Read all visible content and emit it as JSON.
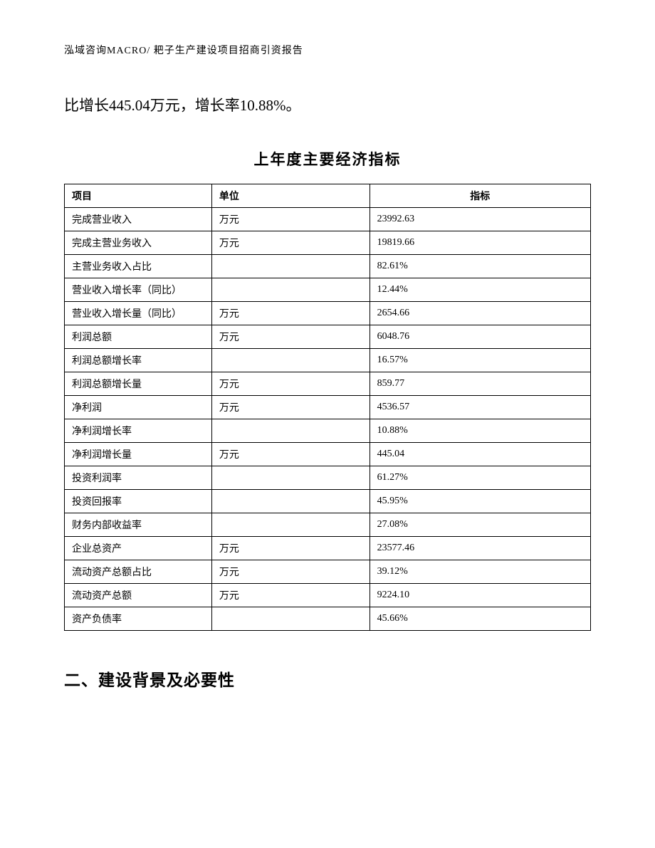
{
  "header": {
    "text": "泓域咨询MACRO/ 耙子生产建设项目招商引资报告"
  },
  "body_paragraph": "比增长445.04万元，增长率10.88%。",
  "table": {
    "title": "上年度主要经济指标",
    "columns": [
      "项目",
      "单位",
      "指标"
    ],
    "rows": [
      [
        "完成营业收入",
        "万元",
        "23992.63"
      ],
      [
        "完成主营业务收入",
        "万元",
        "19819.66"
      ],
      [
        "主营业务收入占比",
        "",
        "82.61%"
      ],
      [
        "营业收入增长率（同比）",
        "",
        "12.44%"
      ],
      [
        "营业收入增长量（同比）",
        "万元",
        "2654.66"
      ],
      [
        "利润总额",
        "万元",
        "6048.76"
      ],
      [
        "利润总额增长率",
        "",
        "16.57%"
      ],
      [
        "利润总额增长量",
        "万元",
        "859.77"
      ],
      [
        "净利润",
        "万元",
        "4536.57"
      ],
      [
        "净利润增长率",
        "",
        "10.88%"
      ],
      [
        "净利润增长量",
        "万元",
        "445.04"
      ],
      [
        "投资利润率",
        "",
        "61.27%"
      ],
      [
        "投资回报率",
        "",
        "45.95%"
      ],
      [
        "财务内部收益率",
        "",
        "27.08%"
      ],
      [
        "企业总资产",
        "万元",
        "23577.46"
      ],
      [
        "流动资产总额占比",
        "万元",
        "39.12%"
      ],
      [
        "流动资产总额",
        "万元",
        "9224.10"
      ],
      [
        "资产负债率",
        "",
        "45.66%"
      ]
    ]
  },
  "section_heading": "二、建设背景及必要性"
}
